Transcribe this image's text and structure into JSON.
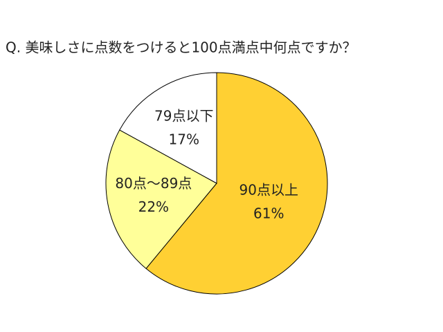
{
  "chart_data": {
    "type": "pie",
    "title": "Q. 美味しさに点数をつけると100点満点中何点ですか？",
    "categories": [
      "90点以上",
      "80点～89点",
      "79点以下"
    ],
    "values": [
      61,
      22,
      17
    ],
    "value_labels": [
      "61%",
      "22%",
      "17%"
    ],
    "colors": [
      "#FFD033",
      "#FFFF99",
      "#FFFFFF"
    ]
  }
}
